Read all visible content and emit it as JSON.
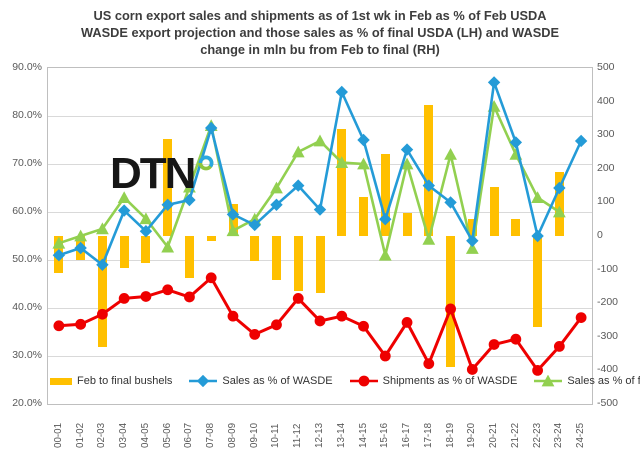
{
  "title": {
    "lines": [
      "US corn export sales and shipments as of 1st wk in Feb as % of Feb USDA",
      "WASDE export projection and those sales as % of final USDA (LH) and WASDE",
      "change in mln bu from Feb to final (RH)"
    ]
  },
  "logo": {
    "text": "DTN"
  },
  "colors": {
    "bar_orange": "#ffc000",
    "line_blue": "#249bd7",
    "line_red": "#ee0000",
    "line_green": "#92d050",
    "gridline": "#d9d9d9",
    "plot_border": "#bfbfbf",
    "axis_text": "#595959",
    "title_text": "#3d3d3d"
  },
  "chart_data": {
    "type": "bar",
    "subtype": "combo-bar-line",
    "title": "US corn export sales and shipments as of 1st wk in Feb as % of Feb USDA WASDE export projection and those sales as % of final USDA (LH) and WASDE change in mln bu from Feb to final (RH)",
    "categories": [
      "00-01",
      "01-02",
      "02-03",
      "03-04",
      "04-05",
      "05-06",
      "06-07",
      "07-08",
      "08-09",
      "09-10",
      "10-11",
      "11-12",
      "12-13",
      "13-14",
      "14-15",
      "15-16",
      "16-17",
      "17-18",
      "18-19",
      "19-20",
      "20-21",
      "21-22",
      "22-23",
      "23-24",
      "24-25"
    ],
    "left_axis": {
      "min": 20,
      "max": 90,
      "step": 10,
      "format": "percent",
      "labels": [
        "90.0%",
        "80.0%",
        "70.0%",
        "60.0%",
        "50.0%",
        "40.0%",
        "30.0%",
        "20.0%"
      ]
    },
    "right_axis": {
      "min": -500,
      "max": 500,
      "step": 100,
      "labels": [
        "500",
        "400",
        "300",
        "200",
        "100",
        "0",
        "-100",
        "-200",
        "-300",
        "-400",
        "-500"
      ]
    },
    "grid": "horizontal-only",
    "legend_position": "bottom-inside",
    "series": [
      {
        "name": "Feb to final bushels",
        "type": "bar",
        "axis": "right",
        "color": "#ffc000",
        "values": [
          -110,
          -70,
          -330,
          -95,
          -80,
          290,
          -125,
          -15,
          95,
          -75,
          -130,
          -165,
          -170,
          320,
          115,
          245,
          70,
          390,
          -390,
          50,
          145,
          50,
          -270,
          190,
          null
        ]
      },
      {
        "name": "Sales as % of WASDE",
        "type": "line",
        "marker": "diamond",
        "axis": "left",
        "color": "#249bd7",
        "values": [
          51,
          52.5,
          49,
          60.3,
          56,
          61.5,
          62.5,
          77.5,
          59.5,
          57.3,
          61.5,
          65.5,
          60.5,
          85,
          75,
          58.5,
          73,
          65.5,
          62,
          54,
          87,
          74.5,
          55,
          65,
          74.8
        ]
      },
      {
        "name": "Shipments as % of WASDE",
        "type": "line",
        "marker": "circle",
        "axis": "left",
        "color": "#ee0000",
        "values": [
          36.3,
          36.6,
          38.7,
          42,
          42.4,
          43.8,
          42.3,
          46.3,
          38.3,
          34.5,
          36.5,
          42,
          37.3,
          38.3,
          36.2,
          30,
          37,
          28.4,
          39.8,
          27.2,
          32.4,
          33.5,
          27,
          32,
          38
        ]
      },
      {
        "name": "Sales as % of final",
        "type": "line",
        "marker": "triangle",
        "axis": "left",
        "color": "#92d050",
        "values": [
          53.5,
          55,
          56.5,
          63,
          58.6,
          52.7,
          65.2,
          78,
          56.1,
          58.5,
          65,
          72.5,
          74.8,
          70.3,
          70,
          51,
          70,
          54.3,
          72,
          52.4,
          82,
          72,
          63,
          60,
          null
        ]
      }
    ]
  }
}
